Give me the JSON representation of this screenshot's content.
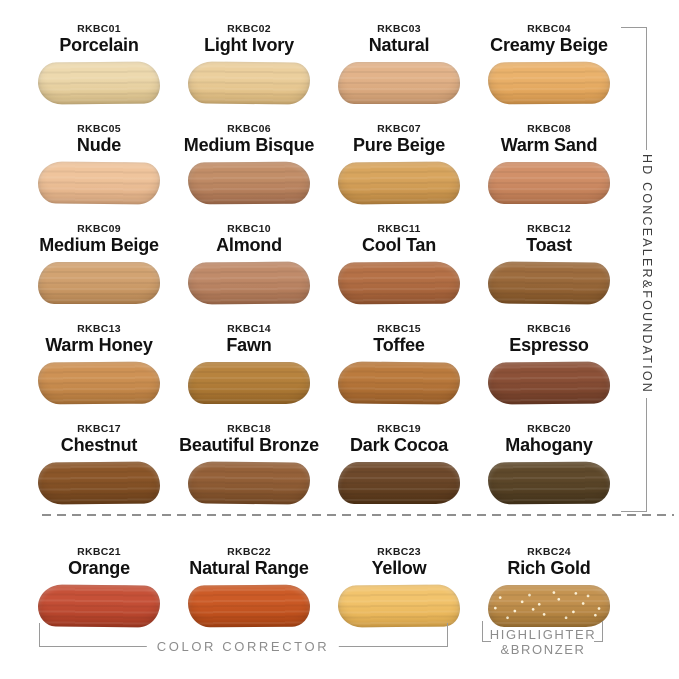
{
  "sections": {
    "foundation_label": "HD CONCEALER&FOUNDATION",
    "corrector_label": "COLOR CORRECTOR",
    "highlighter_label_line1": "HIGHLIGHTER",
    "highlighter_label_line2": "&BRONZER"
  },
  "colors": {
    "bracket_gray": "#9a9a9a",
    "divider_gray": "#8f8f8f",
    "label_gray": "#8c8c8c",
    "text_black": "#111111"
  },
  "swatches": [
    {
      "code": "RKBC01",
      "name": "Porcelain",
      "base": "#EDD9AE",
      "dark": "#DCC189"
    },
    {
      "code": "RKBC02",
      "name": "Light Ivory",
      "base": "#EBCF9D",
      "dark": "#DDB97B"
    },
    {
      "code": "RKBC03",
      "name": "Natural",
      "base": "#E2B38A",
      "dark": "#D19E72"
    },
    {
      "code": "RKBC04",
      "name": "Creamy Beige",
      "base": "#EAB26C",
      "dark": "#DC9C4F"
    },
    {
      "code": "RKBC05",
      "name": "Nude",
      "base": "#EFC49C",
      "dark": "#DFAC82"
    },
    {
      "code": "RKBC06",
      "name": "Medium Bisque",
      "base": "#C28E68",
      "dark": "#A97150"
    },
    {
      "code": "RKBC07",
      "name": "Pure Beige",
      "base": "#D8A55E",
      "dark": "#C28C44"
    },
    {
      "code": "RKBC08",
      "name": "Warm Sand",
      "base": "#D19069",
      "dark": "#BC7850"
    },
    {
      "code": "RKBC09",
      "name": "Medium Beige",
      "base": "#D2A372",
      "dark": "#BD8A55"
    },
    {
      "code": "RKBC10",
      "name": "Almond",
      "base": "#C08B6A",
      "dark": "#A97150"
    },
    {
      "code": "RKBC11",
      "name": "Cool Tan",
      "base": "#B57147",
      "dark": "#9C5A33"
    },
    {
      "code": "RKBC12",
      "name": "Toast",
      "base": "#9D6C3E",
      "dark": "#835527"
    },
    {
      "code": "RKBC13",
      "name": "Warm Honey",
      "base": "#CE9255",
      "dark": "#B67A3C"
    },
    {
      "code": "RKBC14",
      "name": "Fawn",
      "base": "#B7833E",
      "dark": "#9E6B29"
    },
    {
      "code": "RKBC15",
      "name": "Toffee",
      "base": "#BB7B3E",
      "dark": "#A0622A"
    },
    {
      "code": "RKBC16",
      "name": "Espresso",
      "base": "#8C5138",
      "dark": "#703D27"
    },
    {
      "code": "RKBC17",
      "name": "Chestnut",
      "base": "#8B5629",
      "dark": "#70431C"
    },
    {
      "code": "RKBC18",
      "name": "Beautiful Bronze",
      "base": "#956139",
      "dark": "#7A4C26"
    },
    {
      "code": "RKBC19",
      "name": "Dark Cocoa",
      "base": "#6E492B",
      "dark": "#553517"
    },
    {
      "code": "RKBC20",
      "name": "Mahogany",
      "base": "#5F492B",
      "dark": "#48361C"
    },
    {
      "code": "RKBC21",
      "name": "Orange",
      "base": "#C65138",
      "dark": "#AC3D25"
    },
    {
      "code": "RKBC22",
      "name": "Natural Range",
      "base": "#CC5B27",
      "dark": "#B24715"
    },
    {
      "code": "RKBC23",
      "name": "Yellow",
      "base": "#F2C46D",
      "dark": "#E3AD4E"
    },
    {
      "code": "RKBC24",
      "name": "Rich Gold",
      "base": "#C49351",
      "dark": "#A67836",
      "texture": "glitter"
    }
  ]
}
